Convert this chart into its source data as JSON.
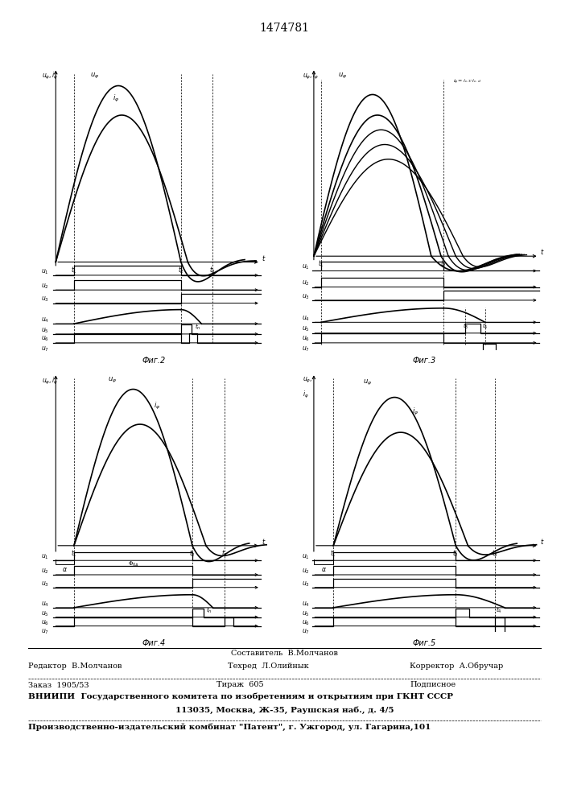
{
  "title": "1474781",
  "fig2_label": "Фиг.2",
  "fig3_label": "Фиг.3",
  "fig4_label": "Фиг.4",
  "fig5_label": "Фиг.5",
  "footer_line0": "Составитель  В.Молчанов",
  "footer_editor": "Редактор  В.Молчанов",
  "footer_tech": "Техред  Л.Олийнык",
  "footer_corr": "Корректор  А.Обручар",
  "footer_order": "Заказ  1905/53",
  "footer_tirazh": "Тираж  605",
  "footer_podp": "Подписное",
  "footer_vniip": "ВНИИПИ  Государственного комитета по изобретениям и открытиям при ГКНТ СССР",
  "footer_addr": "113035, Москва, Ж-35, Раушская наб., д. 4/5",
  "footer_patent": "Производственно-издательский комбинат \"Патент\", г. Ужгород, ул. Гагарина,101"
}
